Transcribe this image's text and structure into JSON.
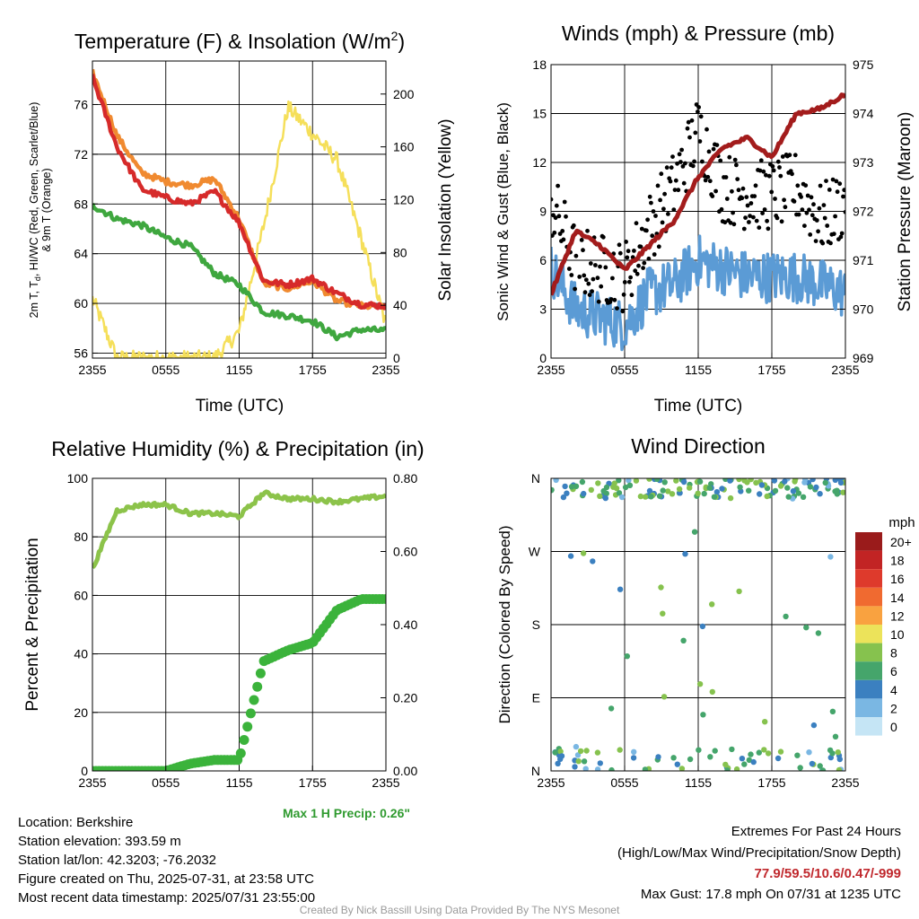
{
  "panels": {
    "temperature": {
      "title": "Temperature (F) & Insolation (W/m",
      "title_sup": "2",
      "title_close": ")",
      "ylabel_left_line1": "2m T, T",
      "ylabel_left_sub": "d",
      "ylabel_left_rest": ", HI/WC (Red, Green, Scarlet/Blue)",
      "ylabel_left_line2": "& 9m T (Orange)",
      "ylabel_right": "Solar Insolation (Yellow)",
      "xlabel": "Time (UTC)",
      "left_ticks": [
        "56",
        "60",
        "64",
        "68",
        "72",
        "76"
      ],
      "right_ticks": [
        "0",
        "40",
        "80",
        "120",
        "160",
        "200"
      ]
    },
    "winds": {
      "title": "Winds (mph) & Pressure (mb)",
      "ylabel_left": "Sonic Wind & Gust (Blue, Black)",
      "ylabel_right": "Station Pressure (Maroon)",
      "xlabel": "Time (UTC)",
      "left_ticks": [
        "0",
        "3",
        "6",
        "9",
        "12",
        "15",
        "18"
      ],
      "right_ticks": [
        "969",
        "970",
        "971",
        "972",
        "973",
        "974",
        "975"
      ]
    },
    "humidity": {
      "title": "Relative Humidity (%) & Precipitation (in)",
      "ylabel_left": "Percent & Precipitation",
      "left_ticks": [
        "0",
        "20",
        "40",
        "60",
        "80",
        "100"
      ],
      "right_ticks": [
        "0.00",
        "0.20",
        "0.40",
        "0.60",
        "0.80"
      ],
      "max_precip": "Max 1 H Precip: 0.26\""
    },
    "direction": {
      "title": "Wind Direction",
      "ylabel_left": "Direction (Colored By Speed)",
      "dir_ticks": [
        "N",
        "E",
        "S",
        "W",
        "N"
      ],
      "legend_title": "mph",
      "legend_labels": [
        "20+",
        "18",
        "16",
        "14",
        "12",
        "10",
        "8",
        "6",
        "4",
        "2",
        "0"
      ]
    }
  },
  "x_ticks": [
    "2355",
    "0555",
    "1155",
    "1755",
    "2355"
  ],
  "footer": {
    "location": "Location: Berkshire",
    "elevation": "Station elevation: 393.59 m",
    "latlon": "Station lat/lon: 42.3203; -76.2032",
    "created": "Figure created on Thu, 2025-07-31, at 23:58 UTC",
    "recent": "Most recent data timestamp: 2025/07/31 23:55:00",
    "extremes_title": "Extremes For Past 24 Hours",
    "extremes_sub": "(High/Low/Max Wind/Precipitation/Snow Depth)",
    "extremes_values": "77.9/59.5/10.6/0.47/-999",
    "max_gust": "Max Gust: 17.8 mph On 07/31 at 1235 UTC",
    "credit": "Created By Nick Bassill Using Data Provided By The NYS Mesonet"
  },
  "colors": {
    "temp_red": "#d62a2a",
    "temp_orange": "#f08a30",
    "dewpoint_green": "#3fa73f",
    "insolation_yellow": "#f5df5a",
    "wind_blue": "#5b9bd5",
    "gust_black": "#000000",
    "pressure_maroon": "#a31c1c",
    "rh_lightgreen": "#8cc34a",
    "precip_green": "#3bb33b",
    "max_precip_text": "#2f9a2f",
    "extremes_text": "#c0282d",
    "legend_scale": [
      "#9a1b1b",
      "#c22424",
      "#de3a2c",
      "#f06a30",
      "#f9a240",
      "#ece35a",
      "#86c24e",
      "#45a56b",
      "#3b80c0",
      "#7ab7e3",
      "#c5e5f5"
    ]
  },
  "chart_data": [
    {
      "type": "line",
      "title": "Temperature (F) & Insolation (W/m2)",
      "xlabel": "Time (UTC)",
      "ylabel": "2m T, Td, HI/WC (Red, Green, Scarlet/Blue) & 9m T (Orange)",
      "y2label": "Solar Insolation (Yellow)",
      "x": [
        "2355",
        "0155",
        "0355",
        "0555",
        "0755",
        "0955",
        "1155",
        "1355",
        "1555",
        "1755",
        "1955",
        "2155",
        "2355"
      ],
      "ylim": [
        55.6,
        79.5
      ],
      "y2lim": [
        0,
        225
      ],
      "series": [
        {
          "name": "2m T",
          "axis": "left",
          "values": [
            78.2,
            72.6,
            69.2,
            68.5,
            68.0,
            69.0,
            66.5,
            61.8,
            61.5,
            62.0,
            60.8,
            59.9,
            59.8
          ]
        },
        {
          "name": "9m T",
          "axis": "left",
          "values": [
            78.6,
            73.5,
            70.5,
            69.8,
            69.5,
            70.0,
            66.8,
            61.6,
            61.2,
            61.8,
            60.2,
            59.8,
            59.7
          ]
        },
        {
          "name": "Td",
          "axis": "left",
          "values": [
            67.9,
            66.8,
            66.3,
            65.3,
            64.6,
            62.4,
            61.5,
            59.3,
            59.0,
            58.6,
            57.3,
            57.9,
            57.8
          ]
        },
        {
          "name": "Insolation",
          "axis": "right",
          "values": [
            45,
            0,
            0,
            0,
            0,
            0,
            20,
            100,
            190,
            170,
            150,
            90,
            25
          ]
        }
      ]
    },
    {
      "type": "line",
      "title": "Winds (mph) & Pressure (mb)",
      "xlabel": "Time (UTC)",
      "ylabel": "Sonic Wind & Gust (Blue, Black)",
      "y2label": "Station Pressure (Maroon)",
      "x": [
        "2355",
        "0155",
        "0355",
        "0555",
        "0755",
        "0955",
        "1155",
        "1355",
        "1555",
        "1755",
        "1955",
        "2155",
        "2355"
      ],
      "ylim": [
        0,
        18
      ],
      "y2lim": [
        969,
        975
      ],
      "series": [
        {
          "name": "Sonic Wind",
          "axis": "left",
          "values": [
            5.5,
            3.0,
            2.5,
            2.0,
            4.0,
            4.5,
            6.0,
            5.5,
            5.0,
            5.0,
            5.0,
            4.5,
            4.0
          ]
        },
        {
          "name": "Gust",
          "axis": "left",
          "values": [
            9.5,
            6.0,
            5.5,
            5.0,
            8.0,
            10.5,
            14.0,
            10.5,
            10.0,
            10.0,
            10.5,
            8.5,
            9.5
          ]
        },
        {
          "name": "Station Pressure",
          "axis": "right",
          "values": [
            970.3,
            971.6,
            971.3,
            970.8,
            971.3,
            971.8,
            972.7,
            973.3,
            973.5,
            973.1,
            974.0,
            974.1,
            974.4
          ]
        }
      ]
    },
    {
      "type": "line",
      "title": "Relative Humidity (%) & Precipitation (in)",
      "ylabel": "Percent & Precipitation",
      "x": [
        "2355",
        "0155",
        "0355",
        "0555",
        "0755",
        "0955",
        "1155",
        "1355",
        "1555",
        "1755",
        "1955",
        "2155",
        "2355"
      ],
      "ylim": [
        0,
        100
      ],
      "y2lim": [
        0,
        0.8
      ],
      "series": [
        {
          "name": "RH",
          "axis": "left",
          "values": [
            69,
            89,
            91,
            91,
            88,
            88,
            87,
            95,
            93,
            93,
            92,
            93,
            94
          ]
        },
        {
          "name": "Precip",
          "axis": "right",
          "values": [
            0,
            0,
            0,
            0,
            0.02,
            0.03,
            0.03,
            0.3,
            0.33,
            0.35,
            0.44,
            0.47,
            0.47
          ]
        }
      ]
    },
    {
      "type": "scatter",
      "title": "Wind Direction",
      "ylabel": "Direction (Colored By Speed)",
      "y_categories": [
        "N",
        "E",
        "S",
        "W",
        "N"
      ],
      "ylim": [
        0,
        360
      ],
      "note": "points colored by wind speed (mph)"
    }
  ]
}
